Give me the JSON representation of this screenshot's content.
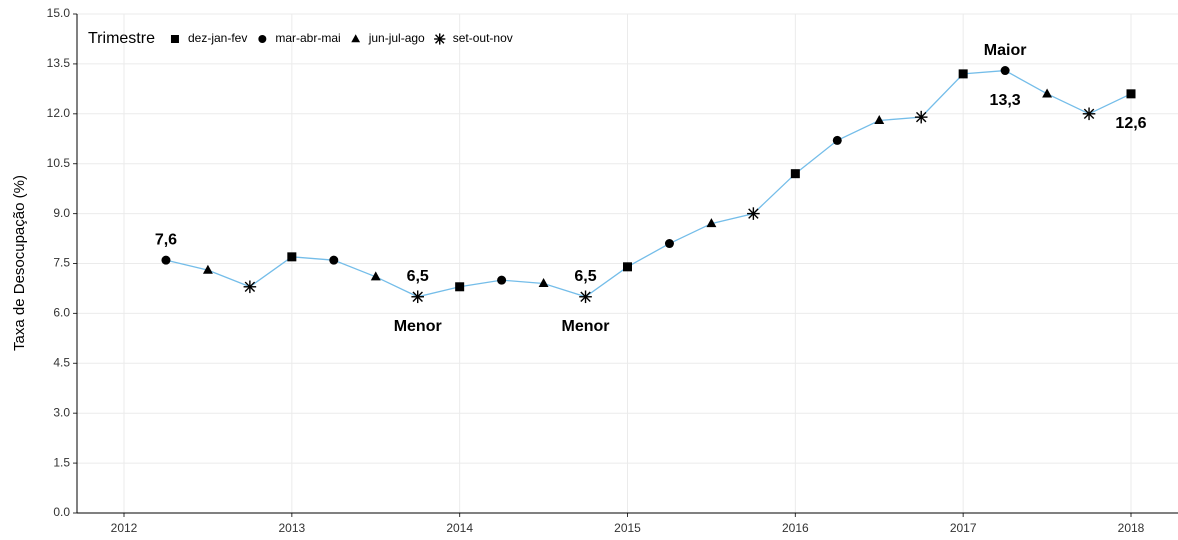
{
  "chart_data": {
    "type": "line",
    "ylabel": "Taxa de Desocupação (%)",
    "x": [
      2012.25,
      2012.5,
      2012.75,
      2013.0,
      2013.25,
      2013.5,
      2013.75,
      2014.0,
      2014.25,
      2014.5,
      2014.75,
      2015.0,
      2015.25,
      2015.5,
      2015.75,
      2016.0,
      2016.25,
      2016.5,
      2016.75,
      2017.0,
      2017.25,
      2017.5,
      2017.75,
      2018.0
    ],
    "values": [
      7.6,
      7.3,
      6.8,
      7.7,
      7.6,
      7.1,
      6.5,
      6.8,
      7.0,
      6.9,
      6.5,
      7.4,
      8.1,
      8.7,
      9.0,
      10.2,
      11.2,
      11.8,
      11.9,
      13.2,
      13.3,
      12.6,
      12.0,
      12.6
    ],
    "quarters": [
      "mar-abr-mai",
      "jun-jul-ago",
      "set-out-nov",
      "dez-jan-fev",
      "mar-abr-mai",
      "jun-jul-ago",
      "set-out-nov",
      "dez-jan-fev",
      "mar-abr-mai",
      "jun-jul-ago",
      "set-out-nov",
      "dez-jan-fev",
      "mar-abr-mai",
      "jun-jul-ago",
      "set-out-nov",
      "dez-jan-fev",
      "mar-abr-mai",
      "jun-jul-ago",
      "set-out-nov",
      "dez-jan-fev",
      "mar-abr-mai",
      "jun-jul-ago",
      "set-out-nov",
      "dez-jan-fev"
    ],
    "color": "#74bde9",
    "marker_color": "#000000",
    "legend": {
      "title": "Trimestre",
      "corner": "top-left",
      "entries": [
        {
          "name": "dez-jan-fev",
          "shape": "square"
        },
        {
          "name": "mar-abr-mai",
          "shape": "circle"
        },
        {
          "name": "jun-jul-ago",
          "shape": "triangle"
        },
        {
          "name": "set-out-nov",
          "shape": "asterisk"
        }
      ]
    },
    "annotations": [
      {
        "text": "7,6",
        "x": 2012.25,
        "y": 7.6,
        "position": "above"
      },
      {
        "text": "6,5",
        "x": 2013.75,
        "y": 6.5,
        "position": "above"
      },
      {
        "text": "Menor",
        "x": 2013.75,
        "y": 6.5,
        "position": "below"
      },
      {
        "text": "6,5",
        "x": 2014.75,
        "y": 6.5,
        "position": "above"
      },
      {
        "text": "Menor",
        "x": 2014.75,
        "y": 6.5,
        "position": "below"
      },
      {
        "text": "Maior",
        "x": 2017.25,
        "y": 13.3,
        "position": "above"
      },
      {
        "text": "13,3",
        "x": 2017.25,
        "y": 13.3,
        "position": "below"
      },
      {
        "text": "12,6",
        "x": 2018.0,
        "y": 12.6,
        "position": "below"
      }
    ],
    "xlim": [
      2011.72,
      2018.28
    ],
    "xticks": [
      2012,
      2013,
      2014,
      2015,
      2016,
      2017,
      2018
    ],
    "ylim": [
      0,
      15
    ],
    "yticks": [
      {
        "value": 0,
        "label": "0.0"
      },
      1.5,
      {
        "value": 3,
        "label": "3.0"
      },
      4.5,
      {
        "value": 6,
        "label": "6.0"
      },
      7.5,
      {
        "value": 9,
        "label": "9.0"
      },
      10.5,
      {
        "value": 12,
        "label": "12.0"
      },
      13.5,
      {
        "value": 15,
        "label": "15.0"
      }
    ],
    "grid": true
  }
}
